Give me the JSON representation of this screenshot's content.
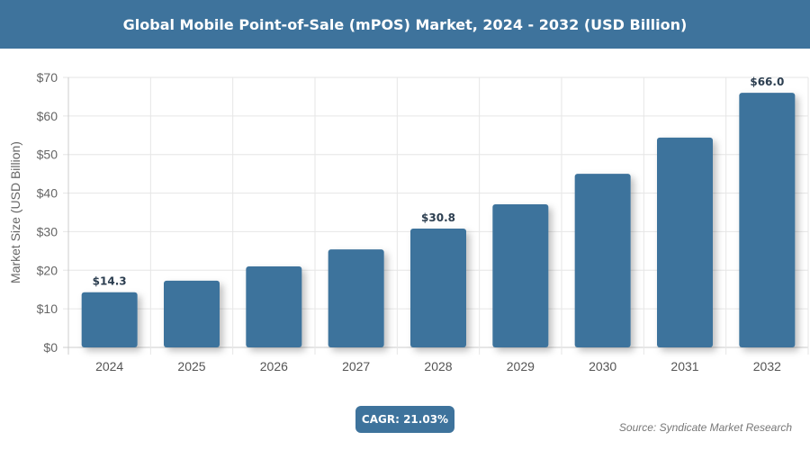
{
  "title": "Global Mobile Point-of-Sale (mPOS) Market, 2024 - 2032 (USD Billion)",
  "cagr": "CAGR: 21.03%",
  "source": "Source: Syndicate Market Research",
  "chart_data": {
    "type": "bar",
    "title": "Global Mobile Point-of-Sale (mPOS) Market, 2024 - 2032 (USD Billion)",
    "xlabel": "",
    "ylabel": "Market Size (USD Billion)",
    "categories": [
      "2024",
      "2025",
      "2026",
      "2027",
      "2028",
      "2029",
      "2030",
      "2031",
      "2032"
    ],
    "values": [
      14.3,
      17.3,
      21.0,
      25.4,
      30.8,
      37.1,
      45.0,
      54.4,
      66.0
    ],
    "data_labels": {
      "2024": "$14.3",
      "2028": "$30.8",
      "2032": "$66.0"
    },
    "ylim": [
      0,
      70
    ],
    "yticks": [
      "$0",
      "$10",
      "$20",
      "$30",
      "$40",
      "$50",
      "$60",
      "$70"
    ],
    "grid": true,
    "bar_color": "#3e739c"
  }
}
